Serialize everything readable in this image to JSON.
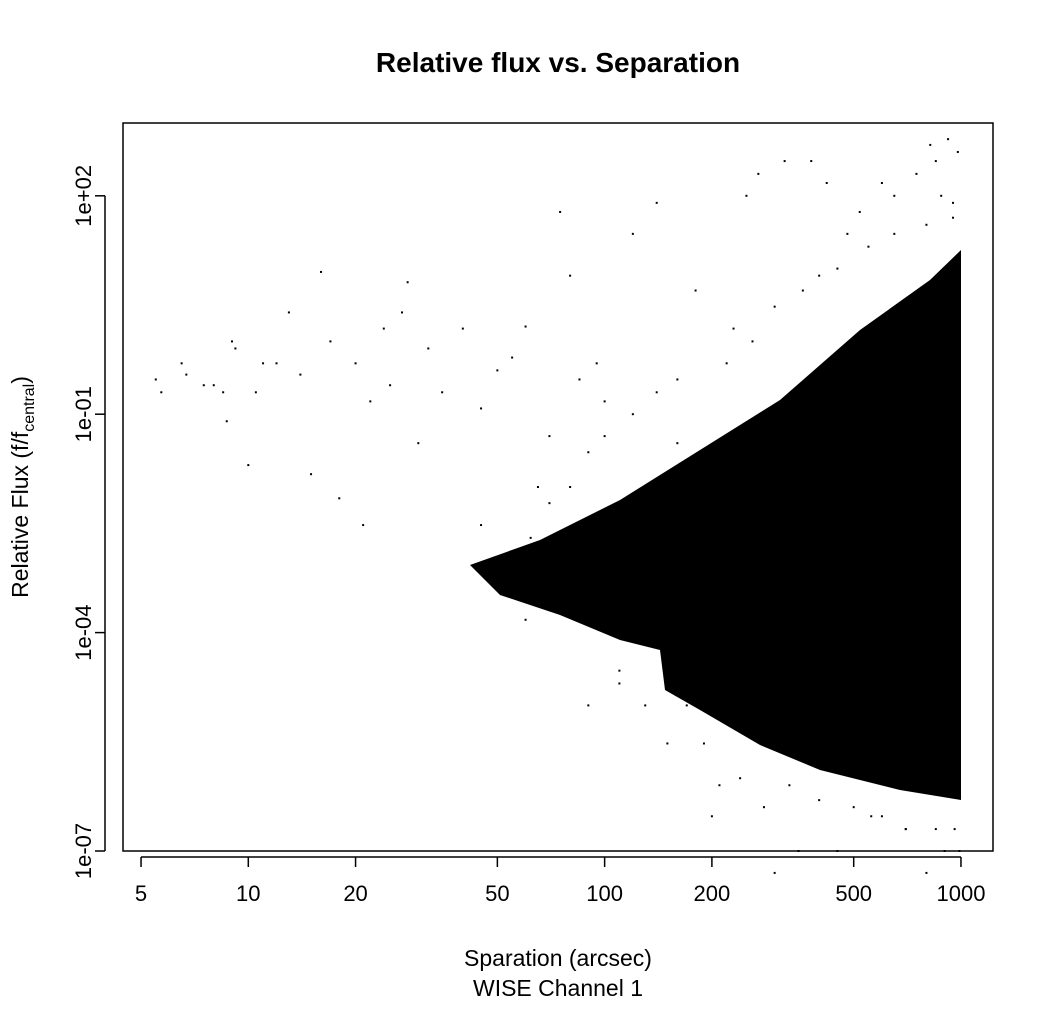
{
  "chart_data": {
    "type": "scatter",
    "title": "Relative flux vs. Separation",
    "x_label": "Sparation (arcsec)",
    "subtitle": "WISE Channel 1",
    "y_label": {
      "text": "Relative Flux (f/f",
      "subscript": "central",
      "suffix": ")"
    },
    "x_log": true,
    "y_log": true,
    "color": "#000000",
    "xlim": [
      4.45,
      1230
    ],
    "ylim": [
      1e-07,
      1000
    ],
    "xticks": [
      5,
      10,
      20,
      50,
      100,
      200,
      500,
      1000
    ],
    "yticks": [
      {
        "value": 1e-07,
        "label": "1e-07"
      },
      {
        "value": 0.0001,
        "label": "1e-04"
      },
      {
        "value": 0.1,
        "label": "1e-01"
      },
      {
        "value": 100,
        "label": "1e+02"
      }
    ],
    "x": [
      5.5,
      5.7,
      6.5,
      6.7,
      7.5,
      8,
      8.5,
      8.7,
      9,
      9.2,
      10,
      10.5,
      11,
      12,
      13,
      14,
      15,
      16,
      17,
      18,
      20,
      21,
      22,
      24,
      25,
      27,
      28,
      30,
      32,
      35,
      40,
      45,
      50,
      55,
      60,
      65,
      70,
      75,
      80,
      85,
      90,
      95,
      100,
      110,
      120,
      130,
      140,
      150,
      160,
      180,
      200,
      210,
      230,
      250,
      270,
      280,
      300,
      320,
      350,
      380,
      400,
      420,
      450,
      480,
      520,
      560,
      600,
      650,
      700,
      750,
      800,
      820,
      850,
      880,
      900,
      920,
      950,
      980,
      990,
      45,
      48,
      55,
      60,
      62,
      70,
      80,
      90,
      100,
      110,
      120,
      140,
      160,
      170,
      190,
      220,
      240,
      260,
      300,
      330,
      360,
      400,
      450,
      500,
      550,
      600,
      650,
      700,
      800,
      850,
      950,
      960
    ],
    "y": [
      0.3,
      0.2,
      0.5,
      0.35,
      0.25,
      0.25,
      0.2,
      0.08,
      1.0,
      0.8,
      0.02,
      0.2,
      0.5,
      0.5,
      2.5,
      0.35,
      0.015,
      9,
      1,
      0.007,
      0.5,
      0.003,
      0.15,
      1.5,
      0.25,
      2.5,
      6.5,
      0.04,
      0.8,
      0.2,
      1.5,
      0.12,
      0.4,
      0.6,
      1.6,
      0.01,
      0.05,
      60,
      8,
      0.3,
      1e-05,
      0.5,
      0.15,
      2e-05,
      30,
      1e-05,
      80,
      3e-06,
      0.04,
      5,
      3e-07,
      8e-07,
      1.5,
      100,
      200,
      4e-07,
      5e-08,
      300,
      1e-07,
      300,
      8,
      150,
      1e-07,
      30,
      60,
      3e-07,
      150,
      100,
      2e-07,
      200,
      5e-08,
      500,
      300,
      100,
      1e-07,
      600,
      80,
      400,
      1e-07,
      0.003,
      0.001,
      0.0005,
      0.00015,
      0.002,
      0.006,
      0.01,
      0.03,
      0.05,
      3e-05,
      0.1,
      0.2,
      0.3,
      1e-05,
      3e-06,
      0.5,
      1e-06,
      1,
      3,
      8e-07,
      5,
      5e-07,
      10,
      4e-07,
      20,
      3e-07,
      30,
      2e-07,
      40,
      2e-07,
      50,
      2e-07
    ]
  }
}
